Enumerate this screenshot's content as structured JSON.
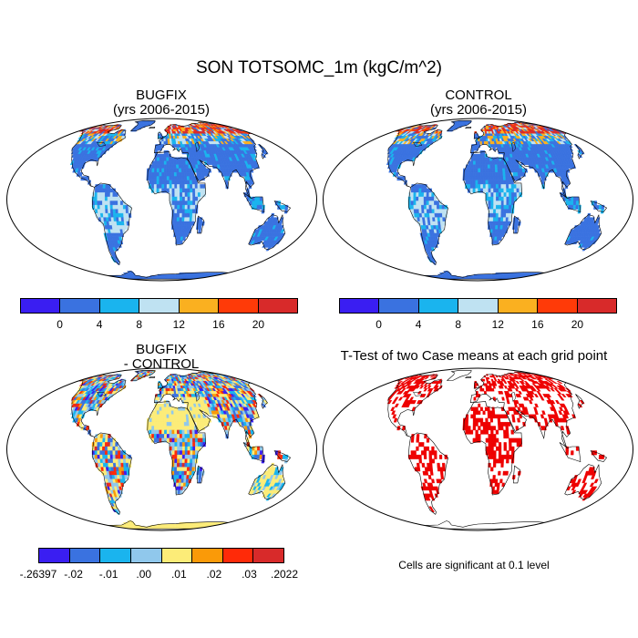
{
  "title": "SON TOTSOMC_1m (kgC/m^2)",
  "panels": {
    "bugfix": {
      "title": "BUGFIX",
      "subtitle": "(yrs 2006-2015)"
    },
    "control": {
      "title": "CONTROL",
      "subtitle": "(yrs 2006-2015)"
    },
    "diff": {
      "title": "BUGFIX",
      "subtitle": "- CONTROL"
    },
    "ttest": {
      "title": "T-Test of two Case means at each grid point",
      "note": "Cells are significant at 0.1 level"
    }
  },
  "colorbar_main": {
    "colors": [
      "#3a1ef2",
      "#3a72e0",
      "#1ab4ee",
      "#bfe2f2",
      "#fab020",
      "#ff3a08",
      "#d82a2a"
    ],
    "labels": [
      "0",
      "4",
      "8",
      "12",
      "16",
      "20"
    ]
  },
  "colorbar_diff": {
    "colors": [
      "#3a1ef2",
      "#3a72e0",
      "#1ab4ee",
      "#90c8ec",
      "#fcec78",
      "#fa9a08",
      "#ff2a08",
      "#d82a2a"
    ],
    "labels": [
      "-.26397",
      "-.02",
      "-.01",
      ".00",
      ".01",
      ".02",
      ".03",
      ".2022"
    ]
  }
}
